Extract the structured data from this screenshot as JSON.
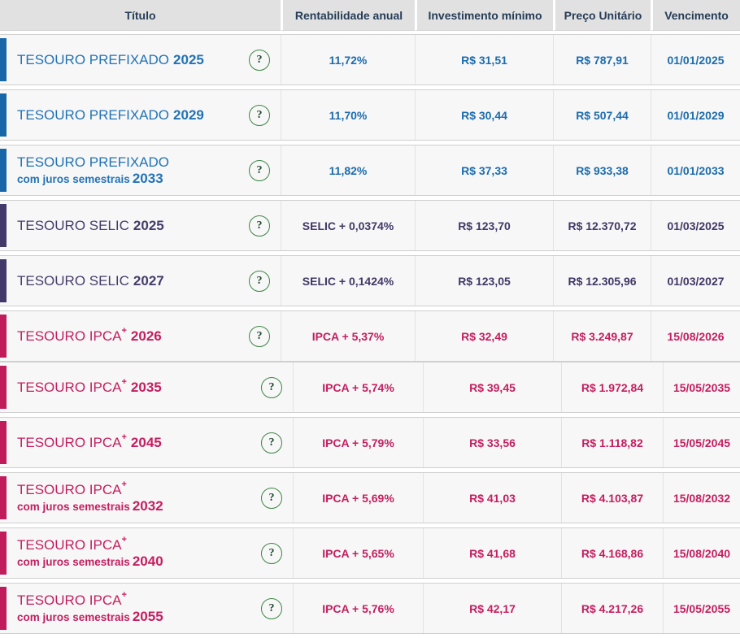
{
  "columns": [
    "Título",
    "Rentabilidade anual",
    "Investimento mínimo",
    "Preço Unitário",
    "Vencimento"
  ],
  "help_icon": {
    "glyph": "?"
  },
  "colors": {
    "header_background": "#e1e1e1",
    "header_text": "#253c57",
    "row_background": "#f7f7f7",
    "prefixado_blue": "#2273b5",
    "selic_purple": "#463c6b",
    "ipca_pink": "#c41e5f",
    "help_ring_green": "#3d8644"
  },
  "rows": [
    {
      "section": 1,
      "theme": "blue",
      "name": "TESOURO PREFIXADO",
      "sup": "",
      "subtitle": "",
      "year": "2025",
      "rentabilidade": "11,72%",
      "investimento_minimo": "R$ 31,51",
      "preco_unitario": "R$ 787,91",
      "vencimento": "01/01/2025"
    },
    {
      "section": 1,
      "theme": "blue",
      "name": "TESOURO PREFIXADO",
      "sup": "",
      "subtitle": "",
      "year": "2029",
      "rentabilidade": "11,70%",
      "investimento_minimo": "R$ 30,44",
      "preco_unitario": "R$ 507,44",
      "vencimento": "01/01/2029"
    },
    {
      "section": 1,
      "theme": "blue",
      "name": "TESOURO PREFIXADO",
      "sup": "",
      "subtitle": "com juros semestrais",
      "year": "2033",
      "rentabilidade": "11,82%",
      "investimento_minimo": "R$ 37,33",
      "preco_unitario": "R$ 933,38",
      "vencimento": "01/01/2033"
    },
    {
      "section": 1,
      "theme": "purple",
      "name": "TESOURO SELIC",
      "sup": "",
      "subtitle": "",
      "year": "2025",
      "rentabilidade": "SELIC + 0,0374%",
      "investimento_minimo": "R$ 123,70",
      "preco_unitario": "R$ 12.370,72",
      "vencimento": "01/03/2025"
    },
    {
      "section": 1,
      "theme": "purple",
      "name": "TESOURO SELIC",
      "sup": "",
      "subtitle": "",
      "year": "2027",
      "rentabilidade": "SELIC + 0,1424%",
      "investimento_minimo": "R$ 123,05",
      "preco_unitario": "R$ 12.305,96",
      "vencimento": "01/03/2027"
    },
    {
      "section": 1,
      "theme": "pink",
      "name": "TESOURO IPCA",
      "sup": "+",
      "subtitle": "",
      "year": "2026",
      "rentabilidade": "IPCA + 5,37%",
      "investimento_minimo": "R$ 32,49",
      "preco_unitario": "R$ 3.249,87",
      "vencimento": "15/08/2026"
    },
    {
      "section": 2,
      "theme": "pink",
      "name": "TESOURO IPCA",
      "sup": "+",
      "subtitle": "",
      "year": "2035",
      "rentabilidade": "IPCA + 5,74%",
      "investimento_minimo": "R$ 39,45",
      "preco_unitario": "R$ 1.972,84",
      "vencimento": "15/05/2035"
    },
    {
      "section": 2,
      "theme": "pink",
      "name": "TESOURO IPCA",
      "sup": "+",
      "subtitle": "",
      "year": "2045",
      "rentabilidade": "IPCA + 5,79%",
      "investimento_minimo": "R$ 33,56",
      "preco_unitario": "R$ 1.118,82",
      "vencimento": "15/05/2045"
    },
    {
      "section": 2,
      "theme": "pink",
      "name": "TESOURO IPCA",
      "sup": "+",
      "subtitle": "com juros semestrais",
      "year": "2032",
      "rentabilidade": "IPCA + 5,69%",
      "investimento_minimo": "R$ 41,03",
      "preco_unitario": "R$ 4.103,87",
      "vencimento": "15/08/2032"
    },
    {
      "section": 2,
      "theme": "pink",
      "name": "TESOURO IPCA",
      "sup": "+",
      "subtitle": "com juros semestrais",
      "year": "2040",
      "rentabilidade": "IPCA + 5,65%",
      "investimento_minimo": "R$ 41,68",
      "preco_unitario": "R$ 4.168,86",
      "vencimento": "15/08/2040"
    },
    {
      "section": 2,
      "theme": "pink",
      "name": "TESOURO IPCA",
      "sup": "+",
      "subtitle": "com juros semestrais",
      "year": "2055",
      "rentabilidade": "IPCA + 5,76%",
      "investimento_minimo": "R$ 42,17",
      "preco_unitario": "R$ 4.217,26",
      "vencimento": "15/05/2055"
    }
  ]
}
